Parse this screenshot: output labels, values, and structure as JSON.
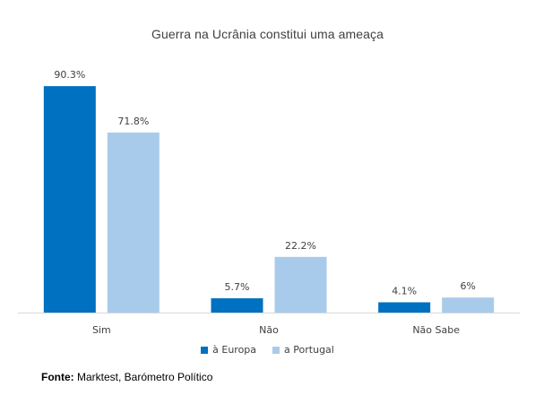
{
  "source": {
    "label": "Fonte:",
    "text": " Marktest, Barómetro Político"
  },
  "colors": {
    "series_europa": "#0070c0",
    "series_portugal": "#a9cbeb",
    "axis": "#d9d9d9",
    "text": "#404040"
  },
  "chart_data": {
    "type": "bar",
    "title": "Guerra na Ucrânia constitui uma ameaça",
    "categories": [
      "Sim",
      "Não",
      "Não Sabe"
    ],
    "series": [
      {
        "name": "à Europa",
        "values": [
          90.3,
          5.7,
          4.1
        ],
        "labels": [
          "90.3%",
          "5.7%",
          "4.1%"
        ]
      },
      {
        "name": "a Portugal",
        "values": [
          71.8,
          22.2,
          6
        ],
        "labels": [
          "71.8%",
          "22.2%",
          "6%"
        ]
      }
    ],
    "ylim": [
      0,
      100
    ],
    "grid": false,
    "legend_position": "bottom"
  }
}
